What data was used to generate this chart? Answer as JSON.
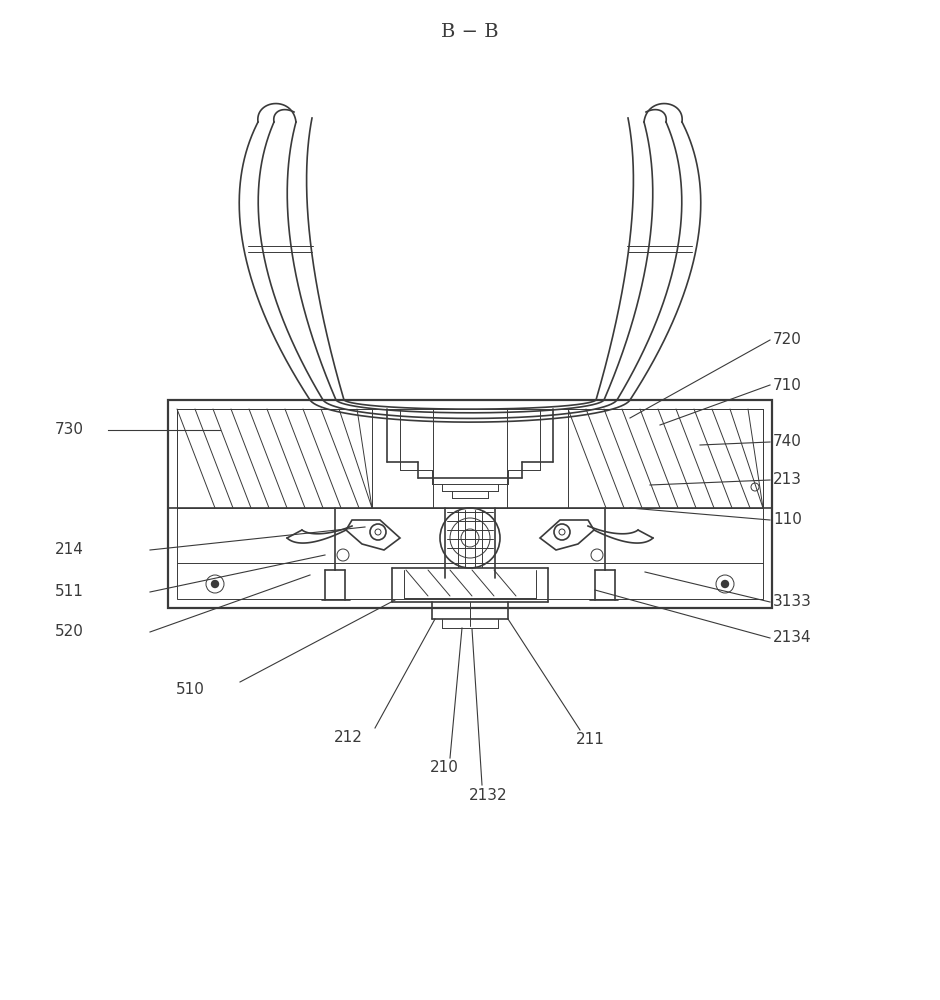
{
  "title": "B − B",
  "title_fontsize": 14,
  "line_color": "#3a3a3a",
  "line_width": 1.2,
  "thin_line": 0.7,
  "background": "#ffffff",
  "label_fontsize": 11
}
